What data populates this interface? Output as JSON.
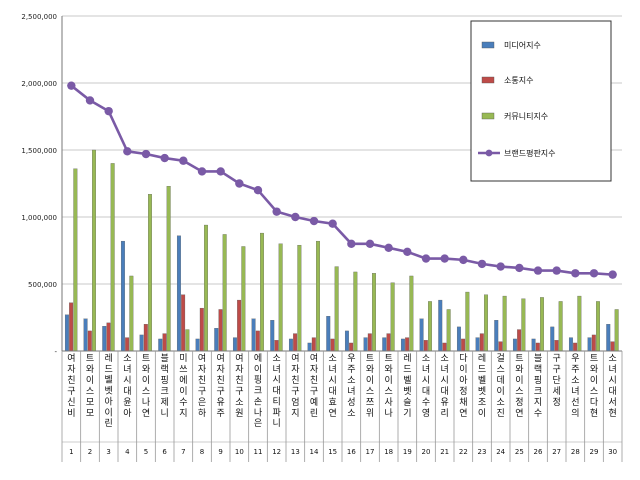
{
  "chart_data": {
    "type": "bar",
    "title": "",
    "xlabel": "",
    "ylabel": "",
    "ylim": [
      0,
      2500000
    ],
    "yticks": [
      "-",
      "500,000",
      "1,000,000",
      "1,500,000",
      "2,000,000",
      "2,500,000"
    ],
    "grid": true,
    "legend_position": "top-right",
    "categories": [
      "여자친구 신비",
      "트와이스 모모",
      "레드벨벳 아이린",
      "소녀시대 윤아",
      "트와이스 나연",
      "블랙핑크 제니",
      "미쓰에이 수지",
      "여자친구 은하",
      "여자친구 유주",
      "여자친구 소원",
      "에이핑크 손나은",
      "소녀시대 티파니",
      "여자친구 엄지",
      "여자친구 예린",
      "소녀시대 효연",
      "우주소녀 성소",
      "트와이스 쯔위",
      "트와이스 사나",
      "레드벨벳 슬기",
      "소녀시대 수영",
      "소녀시대 유리",
      "다이아 정채연",
      "레드벨벳 조이",
      "걸스데이 소진",
      "트와이스 정연",
      "블랙핑크 지수",
      "구구단 세정",
      "우주소녀 선의",
      "트와이스 다현",
      "소녀시대 서현"
    ],
    "ranks": [
      "1",
      "2",
      "3",
      "4",
      "5",
      "6",
      "7",
      "8",
      "9",
      "10",
      "11",
      "12",
      "13",
      "14",
      "15",
      "16",
      "17",
      "18",
      "19",
      "20",
      "21",
      "22",
      "23",
      "24",
      "25",
      "26",
      "27",
      "28",
      "29",
      "30"
    ],
    "series": [
      {
        "name": "미디어지수",
        "type": "bar",
        "color": "#4a7ebb",
        "values": [
          270000,
          240000,
          185000,
          820000,
          120000,
          90000,
          860000,
          90000,
          170000,
          100000,
          240000,
          230000,
          90000,
          60000,
          260000,
          150000,
          100000,
          100000,
          90000,
          240000,
          380000,
          180000,
          100000,
          230000,
          90000,
          90000,
          180000,
          100000,
          100000,
          200000
        ]
      },
      {
        "name": "소통지수",
        "type": "bar",
        "color": "#be4b48",
        "values": [
          360000,
          150000,
          210000,
          100000,
          200000,
          130000,
          420000,
          320000,
          310000,
          380000,
          150000,
          80000,
          130000,
          100000,
          90000,
          60000,
          130000,
          130000,
          100000,
          80000,
          60000,
          90000,
          130000,
          70000,
          160000,
          60000,
          80000,
          60000,
          120000,
          70000
        ]
      },
      {
        "name": "커뮤니티지수",
        "type": "bar",
        "color": "#98b954",
        "values": [
          1360000,
          1500000,
          1400000,
          560000,
          1170000,
          1230000,
          160000,
          940000,
          870000,
          780000,
          880000,
          800000,
          790000,
          820000,
          630000,
          590000,
          580000,
          510000,
          560000,
          370000,
          310000,
          440000,
          420000,
          410000,
          390000,
          400000,
          370000,
          410000,
          370000,
          310000
        ]
      },
      {
        "name": "브랜드평판지수",
        "type": "line",
        "color": "#7a5aa6",
        "values": [
          1980000,
          1870000,
          1790000,
          1490000,
          1470000,
          1440000,
          1420000,
          1340000,
          1340000,
          1250000,
          1200000,
          1040000,
          1000000,
          970000,
          950000,
          800000,
          800000,
          770000,
          740000,
          690000,
          690000,
          680000,
          650000,
          630000,
          620000,
          600000,
          600000,
          580000,
          580000,
          570000
        ]
      }
    ]
  }
}
